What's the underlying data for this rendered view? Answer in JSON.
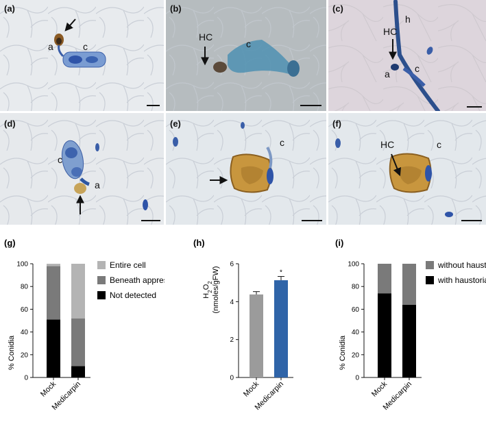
{
  "figure": {
    "panels": [
      {
        "label": "(a)",
        "annotations": [
          "a",
          "c"
        ]
      },
      {
        "label": "(b)",
        "annotations": [
          "HC",
          "c"
        ]
      },
      {
        "label": "(c)",
        "annotations": [
          "HC",
          "h",
          "a",
          "c"
        ]
      },
      {
        "label": "(d)",
        "annotations": [
          "c",
          "a"
        ]
      },
      {
        "label": "(e)",
        "annotations": [
          "c"
        ]
      },
      {
        "label": "(f)",
        "annotations": [
          "HC",
          "c"
        ]
      }
    ]
  },
  "colors": {
    "black": "#000000",
    "dark_grey": "#7a7a7a",
    "light_grey": "#b4b4b4",
    "medium_grey": "#9b9b9b",
    "blue": "#2f64a8"
  },
  "chart_data": [
    {
      "panel": "(g)",
      "type": "bar",
      "stacked": true,
      "categories": [
        "Mock",
        "Medicarpin"
      ],
      "ylabel": "% Conidia",
      "ylim": [
        0,
        100
      ],
      "yticks": [
        0,
        20,
        40,
        60,
        80,
        100
      ],
      "legend_position": "right",
      "series": [
        {
          "name": "Not detected",
          "values": [
            51,
            10
          ],
          "color": "#000000"
        },
        {
          "name": "Beneath appressorium",
          "values": [
            47,
            42
          ],
          "color": "#7a7a7a"
        },
        {
          "name": "Entire cell",
          "values": [
            2,
            48
          ],
          "color": "#b4b4b4"
        }
      ]
    },
    {
      "panel": "(h)",
      "type": "bar",
      "categories": [
        "Mock",
        "Medicarpin"
      ],
      "ylabel_line1": "H2O2",
      "ylabel_line2": "(nmoles/gFW)",
      "ylim": [
        0,
        6
      ],
      "yticks": [
        0,
        2,
        4,
        6
      ],
      "values": [
        4.38,
        5.13
      ],
      "errors": [
        0.15,
        0.2
      ],
      "colors": [
        "#9b9b9b",
        "#2f64a8"
      ],
      "significance": [
        "",
        "*"
      ]
    },
    {
      "panel": "(i)",
      "type": "bar",
      "stacked": true,
      "categories": [
        "Mock",
        "Medicarpin"
      ],
      "ylabel": "% Conidia",
      "ylim": [
        0,
        100
      ],
      "yticks": [
        0,
        20,
        40,
        60,
        80,
        100
      ],
      "legend_position": "right",
      "series": [
        {
          "name": "with haustoria",
          "values": [
            74,
            64
          ],
          "color": "#000000"
        },
        {
          "name": "without haustoria",
          "values": [
            26,
            36
          ],
          "color": "#7a7a7a"
        }
      ]
    }
  ]
}
